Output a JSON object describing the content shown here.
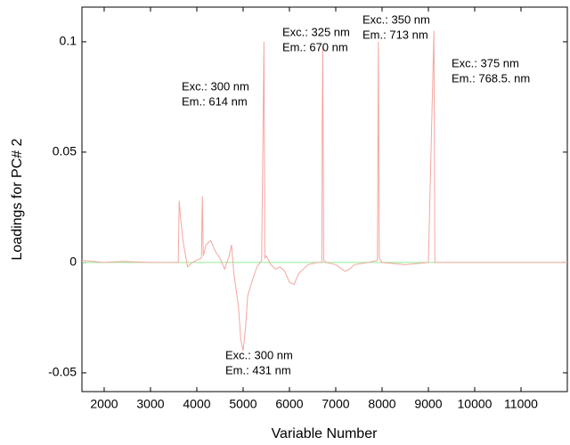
{
  "chart_data": {
    "type": "line",
    "xlabel": "Variable Number",
    "ylabel": "Loadings for PC# 2",
    "xlim": [
      1520,
      12000
    ],
    "ylim": [
      -0.0585,
      0.1157
    ],
    "xticks": [
      2000,
      3000,
      4000,
      5000,
      6000,
      7000,
      8000,
      9000,
      10000,
      11000
    ],
    "yticks": [
      -0.05,
      0,
      0.05,
      0.1
    ],
    "zero_line_color": "#90ee90",
    "series": [
      {
        "name": "PC# 2",
        "color": "#f4a6a0",
        "x": [
          1520,
          2000,
          2400,
          3000,
          3500,
          3600,
          3620,
          3650,
          3700,
          3800,
          3900,
          4000,
          4100,
          4120,
          4140,
          4200,
          4300,
          4400,
          4500,
          4600,
          4700,
          4750,
          4800,
          4900,
          4950,
          5000,
          5050,
          5100,
          5200,
          5300,
          5400,
          5450,
          5470,
          5500,
          5600,
          5700,
          5800,
          5900,
          6000,
          6100,
          6200,
          6400,
          6600,
          6700,
          6710,
          6720,
          6740,
          6800,
          7000,
          7200,
          7300,
          7400,
          7700,
          7900,
          7920,
          7940,
          8000,
          8500,
          9000,
          9120,
          9140,
          9500,
          10000,
          11000,
          12000
        ],
        "values": [
          0.001,
          0,
          0.0005,
          0,
          0,
          0,
          0.028,
          0.02,
          0.01,
          -0.002,
          0,
          0.001,
          0.002,
          0.03,
          0.003,
          0.008,
          0.01,
          0.005,
          0.002,
          -0.003,
          0.003,
          0.008,
          -0.005,
          -0.02,
          -0.035,
          -0.04,
          -0.03,
          -0.015,
          -0.008,
          -0.002,
          0.001,
          0.1,
          0.002,
          0.003,
          -0.001,
          -0.003,
          -0.002,
          -0.004,
          -0.009,
          -0.01,
          -0.005,
          -0.001,
          0,
          0,
          0.07,
          0.098,
          0.001,
          0,
          -0.001,
          -0.004,
          -0.003,
          -0.001,
          0,
          0.001,
          0.1,
          0.002,
          0,
          -0.001,
          0,
          0.105,
          0,
          0,
          0,
          0,
          0
        ]
      }
    ],
    "annotations": [
      [
        "Exc.: 300 nm",
        "Em.: 614 nm"
      ],
      [
        "Exc.: 325 nm",
        "Em.: 670 nm"
      ],
      [
        "Exc.: 350 nm",
        "Em.: 713 nm"
      ],
      [
        "Exc.: 375 nm",
        "Em.: 768.5. nm"
      ],
      [
        "Exc.: 300 nm",
        "Em.: 431 nm"
      ]
    ]
  }
}
